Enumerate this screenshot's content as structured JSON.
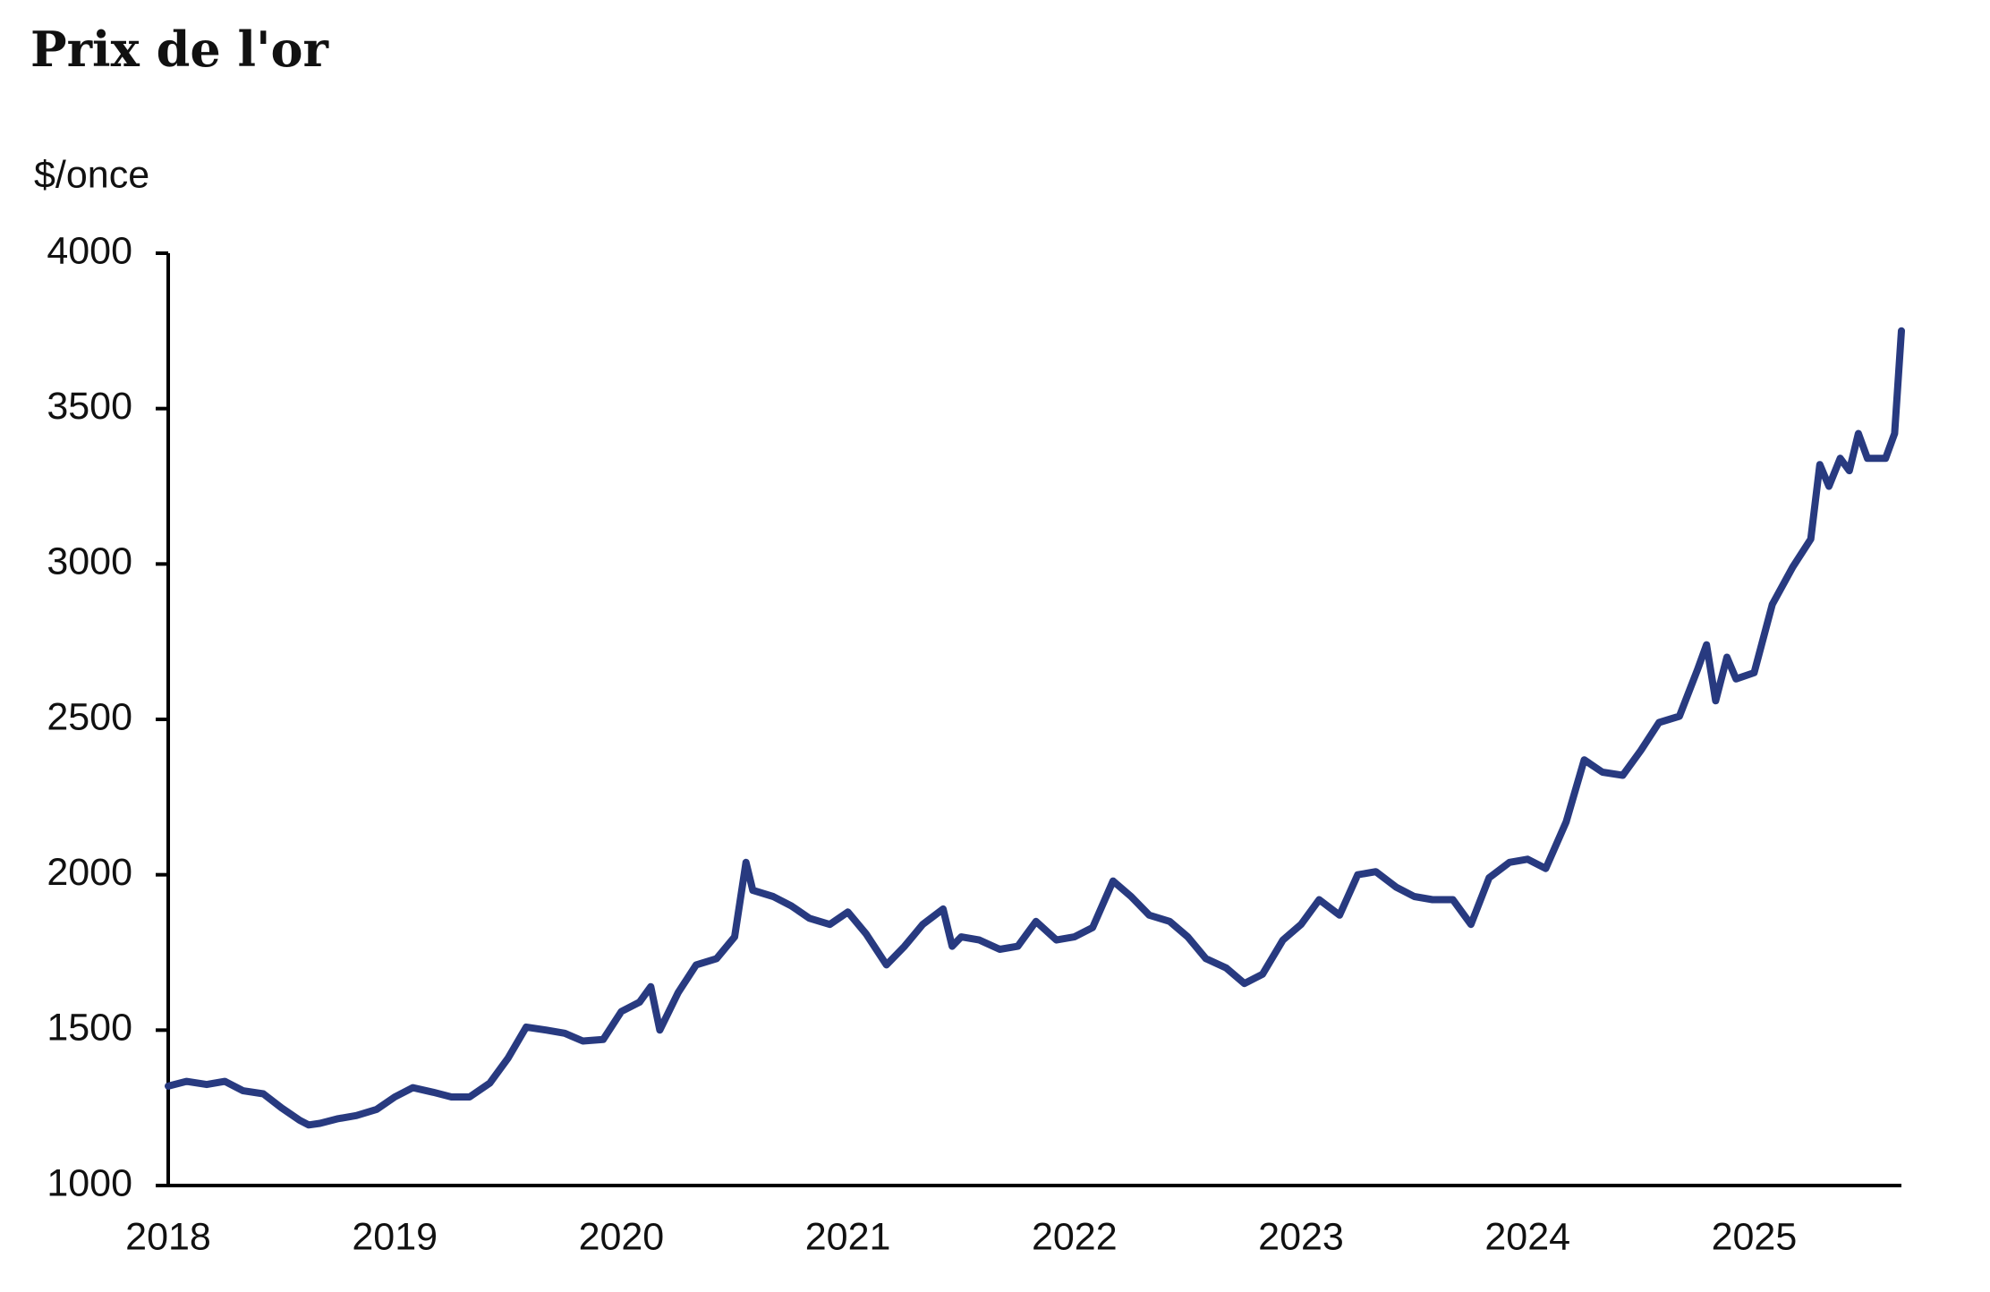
{
  "chart_data": {
    "type": "line",
    "title": "Prix de l'or",
    "y_label": "$/once",
    "x": [
      2018.0,
      2018.08,
      2018.17,
      2018.25,
      2018.33,
      2018.42,
      2018.5,
      2018.58,
      2018.62,
      2018.67,
      2018.75,
      2018.83,
      2018.92,
      2019.0,
      2019.08,
      2019.17,
      2019.25,
      2019.33,
      2019.42,
      2019.5,
      2019.58,
      2019.67,
      2019.75,
      2019.83,
      2019.92,
      2020.0,
      2020.08,
      2020.13,
      2020.17,
      2020.25,
      2020.33,
      2020.42,
      2020.5,
      2020.55,
      2020.58,
      2020.67,
      2020.75,
      2020.83,
      2020.92,
      2021.0,
      2021.08,
      2021.17,
      2021.25,
      2021.33,
      2021.42,
      2021.46,
      2021.5,
      2021.58,
      2021.67,
      2021.75,
      2021.83,
      2021.92,
      2022.0,
      2022.08,
      2022.17,
      2022.25,
      2022.33,
      2022.42,
      2022.5,
      2022.58,
      2022.67,
      2022.75,
      2022.83,
      2022.92,
      2023.0,
      2023.08,
      2023.17,
      2023.25,
      2023.33,
      2023.42,
      2023.5,
      2023.58,
      2023.67,
      2023.75,
      2023.83,
      2023.92,
      2024.0,
      2024.08,
      2024.17,
      2024.25,
      2024.33,
      2024.42,
      2024.5,
      2024.58,
      2024.67,
      2024.75,
      2024.79,
      2024.83,
      2024.88,
      2024.92,
      2025.0,
      2025.08,
      2025.17,
      2025.25,
      2025.29,
      2025.33,
      2025.38,
      2025.42,
      2025.46,
      2025.5,
      2025.58,
      2025.62,
      2025.65
    ],
    "series": [
      {
        "name": "Prix de l'or",
        "color": "#283a80",
        "values": [
          1320,
          1335,
          1325,
          1335,
          1305,
          1295,
          1250,
          1210,
          1195,
          1200,
          1215,
          1225,
          1245,
          1285,
          1315,
          1300,
          1285,
          1285,
          1330,
          1410,
          1510,
          1500,
          1490,
          1465,
          1470,
          1560,
          1590,
          1640,
          1500,
          1620,
          1710,
          1730,
          1800,
          2040,
          1950,
          1930,
          1900,
          1860,
          1840,
          1880,
          1810,
          1710,
          1770,
          1840,
          1890,
          1770,
          1800,
          1790,
          1760,
          1770,
          1850,
          1790,
          1800,
          1830,
          1980,
          1930,
          1870,
          1850,
          1800,
          1730,
          1700,
          1650,
          1680,
          1790,
          1840,
          1920,
          1870,
          2000,
          2010,
          1960,
          1930,
          1920,
          1920,
          1840,
          1990,
          2040,
          2050,
          2020,
          2170,
          2370,
          2330,
          2320,
          2400,
          2490,
          2510,
          2660,
          2740,
          2560,
          2700,
          2630,
          2650,
          2870,
          2990,
          3080,
          3320,
          3250,
          3340,
          3300,
          3420,
          3340,
          3340,
          3420,
          3750
        ]
      }
    ],
    "xlim": [
      2018,
      2025.65
    ],
    "xticks": [
      2018,
      2019,
      2020,
      2021,
      2022,
      2023,
      2024,
      2025
    ],
    "ylim": [
      1000,
      4000
    ],
    "yticks": [
      1000,
      1500,
      2000,
      2500,
      3000,
      3500,
      4000
    ],
    "grid": false
  }
}
